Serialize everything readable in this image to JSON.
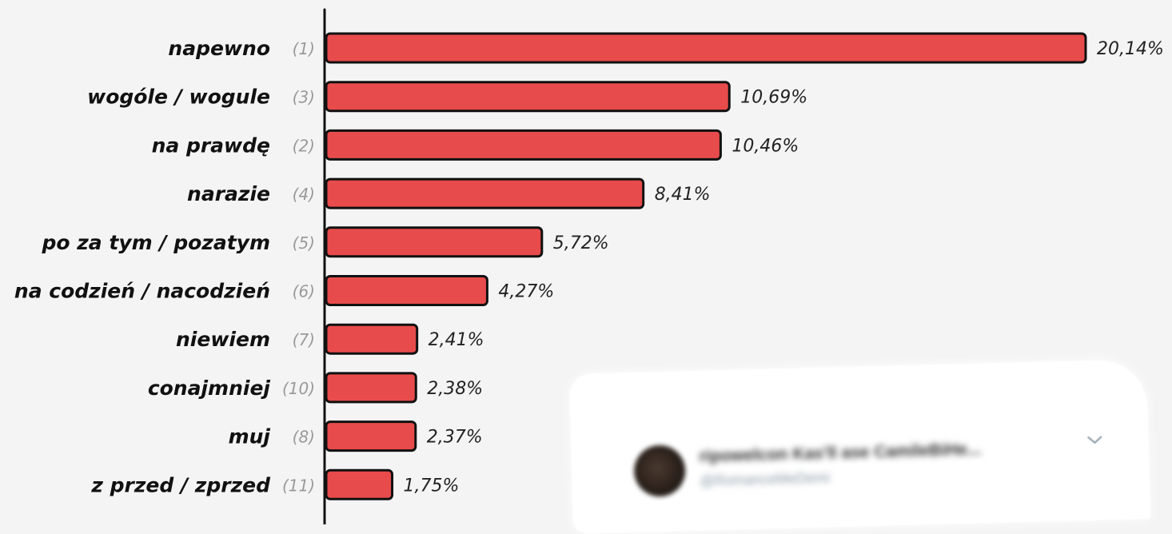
{
  "chart_data": {
    "type": "bar",
    "orientation": "horizontal",
    "categories": [
      "napewno",
      "wogóle / wogule",
      "na  prawdę",
      "narazie",
      "po za tym / pozatym",
      "na codzień / nacodzień",
      "niewiem",
      "conajmniej",
      "muj",
      "z przed / zprzed"
    ],
    "ranks": [
      "(1)",
      "(3)",
      "(2)",
      "(4)",
      "(5)",
      "(6)",
      "(7)",
      "(10)",
      "(8)",
      "(11)"
    ],
    "values": [
      20.14,
      10.69,
      10.46,
      8.41,
      5.72,
      4.27,
      2.41,
      2.38,
      2.37,
      1.75
    ],
    "value_labels": [
      "20,14%",
      "10,69%",
      "10,46%",
      "8,41%",
      "5,72%",
      "4,27%",
      "2,41%",
      "2,38%",
      "2,37%",
      "1,75%"
    ],
    "title": "",
    "xlabel": "",
    "ylabel": "",
    "xlim": [
      0,
      20.14
    ],
    "grid": false,
    "legend": "none",
    "bar_color": "#e84b4b",
    "bar_outline_color": "#111111"
  },
  "tweet_overlay": {
    "display_name": "ripowelcon Kas'll ase CamileBiHe...",
    "handle": "@RomanceMeDemi",
    "menu_icon": "chevron-down-icon",
    "avatar_icon": "avatar"
  }
}
